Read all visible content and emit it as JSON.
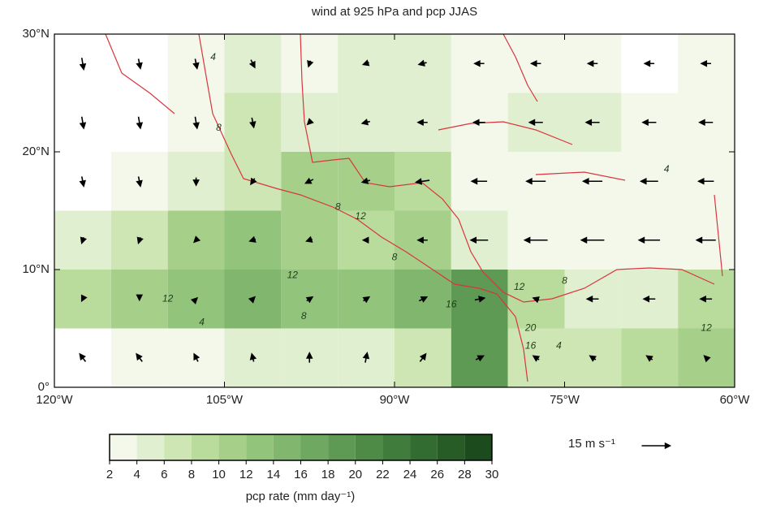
{
  "chart_data": {
    "type": "vector_map",
    "title": "wind at 925 hPa and pcp JJAS",
    "xlim": [
      -120,
      -60
    ],
    "ylim": [
      0,
      30
    ],
    "xticks": [
      {
        "value": -120,
        "label": "120°W"
      },
      {
        "value": -105,
        "label": "105°W"
      },
      {
        "value": -90,
        "label": "90°W"
      },
      {
        "value": -75,
        "label": "75°W"
      },
      {
        "value": -60,
        "label": "60°W"
      }
    ],
    "yticks": [
      {
        "value": 0,
        "label": "0°"
      },
      {
        "value": 10,
        "label": "10°N"
      },
      {
        "value": 20,
        "label": "20°N"
      },
      {
        "value": 30,
        "label": "30°N"
      }
    ],
    "lon": [
      -117.5,
      -112.5,
      -107.5,
      -102.5,
      -97.5,
      -92.5,
      -87.5,
      -82.5,
      -77.5,
      -72.5,
      -67.5,
      -62.5
    ],
    "lat": [
      27.5,
      22.5,
      17.5,
      12.5,
      7.5,
      2.5
    ],
    "precip": [
      [
        0,
        1,
        3,
        5,
        3,
        4,
        4,
        3,
        3,
        2,
        1,
        2
      ],
      [
        0,
        1,
        2,
        7,
        4,
        5,
        5,
        3,
        4,
        4,
        2,
        3
      ],
      [
        1,
        3,
        5,
        7,
        10,
        10,
        8,
        3,
        2,
        3,
        3,
        3
      ],
      [
        5,
        7,
        10,
        12,
        10,
        8,
        10,
        4,
        3,
        2,
        2,
        3
      ],
      [
        8,
        11,
        13,
        14,
        13,
        13,
        14,
        18,
        8,
        5,
        4,
        8
      ],
      [
        1,
        2,
        3,
        4,
        4,
        5,
        7,
        18,
        6,
        6,
        8,
        10
      ]
    ],
    "u": [
      [
        1,
        1,
        1,
        2,
        -1,
        -3,
        -4,
        -5,
        -5,
        -5,
        -5,
        -5
      ],
      [
        1,
        1,
        1,
        1,
        -2,
        -4,
        -5,
        -6,
        -7,
        -7,
        -7,
        -7
      ],
      [
        1,
        1,
        0,
        -2,
        -4,
        -4,
        -7,
        -8,
        -10,
        -10,
        -9,
        -8
      ],
      [
        -1,
        -1,
        -2,
        -3,
        -3,
        -3,
        -5,
        -9,
        -12,
        -12,
        -11,
        -10
      ],
      [
        -1,
        0,
        1,
        2,
        3,
        3,
        4,
        5,
        -3,
        -6,
        -6,
        -6
      ],
      [
        -3,
        -3,
        -2,
        -1,
        0,
        1,
        3,
        4,
        -3,
        -3,
        -3,
        -2
      ]
    ],
    "v": [
      [
        -6,
        -5,
        -5,
        -4,
        -3,
        -1,
        -1,
        0,
        0,
        0,
        0,
        0
      ],
      [
        -6,
        -6,
        -6,
        -5,
        -2,
        -1,
        0,
        0,
        0,
        0,
        0,
        0
      ],
      [
        -5,
        -5,
        -4,
        -3,
        -2,
        -1,
        -1,
        0,
        0,
        0,
        0,
        0
      ],
      [
        -3,
        -3,
        -2,
        -1,
        -1,
        0,
        0,
        0,
        0,
        0,
        0,
        0
      ],
      [
        -2,
        -1,
        1,
        2,
        2,
        2,
        2,
        1,
        1,
        0,
        0,
        0
      ],
      [
        4,
        4,
        4,
        4,
        5,
        5,
        4,
        2,
        2,
        2,
        2,
        2
      ]
    ],
    "contour_labels": [
      {
        "value": 4,
        "lon": -106,
        "lat": 28
      },
      {
        "value": 8,
        "lon": -105.5,
        "lat": 22
      },
      {
        "value": 12,
        "lon": -93,
        "lat": 14.5
      },
      {
        "value": 8,
        "lon": -95,
        "lat": 15.3
      },
      {
        "value": 8,
        "lon": -90,
        "lat": 11
      },
      {
        "value": 12,
        "lon": -110,
        "lat": 7.5
      },
      {
        "value": 4,
        "lon": -107,
        "lat": 5.5
      },
      {
        "value": 12,
        "lon": -99,
        "lat": 9.5
      },
      {
        "value": 8,
        "lon": -98,
        "lat": 6
      },
      {
        "value": 16,
        "lon": -85,
        "lat": 7
      },
      {
        "value": 12,
        "lon": -79,
        "lat": 8.5
      },
      {
        "value": 8,
        "lon": -75,
        "lat": 9
      },
      {
        "value": 20,
        "lon": -78,
        "lat": 5
      },
      {
        "value": 16,
        "lon": -78,
        "lat": 3.5
      },
      {
        "value": 4,
        "lon": -75.5,
        "lat": 3.5
      },
      {
        "value": 12,
        "lon": -62.5,
        "lat": 5
      },
      {
        "value": 4,
        "lon": -66,
        "lat": 18.5
      }
    ],
    "colorbar": {
      "label": "pcp rate (mm day⁻¹)",
      "levels": [
        2,
        4,
        6,
        8,
        10,
        12,
        14,
        16,
        18,
        20,
        22,
        24,
        26,
        28,
        30
      ],
      "colors": [
        "#f3f8ea",
        "#e0efcf",
        "#cde6b3",
        "#b9dc9c",
        "#a6d08a",
        "#93c47c",
        "#80b66d",
        "#6fa860",
        "#5e9a53",
        "#4e8b47",
        "#407c3c",
        "#336c31",
        "#275c27",
        "#1c4b1e"
      ]
    },
    "reference_vector": {
      "value": 15,
      "label": "15 m s⁻¹"
    },
    "arrow_color": "#000000"
  }
}
